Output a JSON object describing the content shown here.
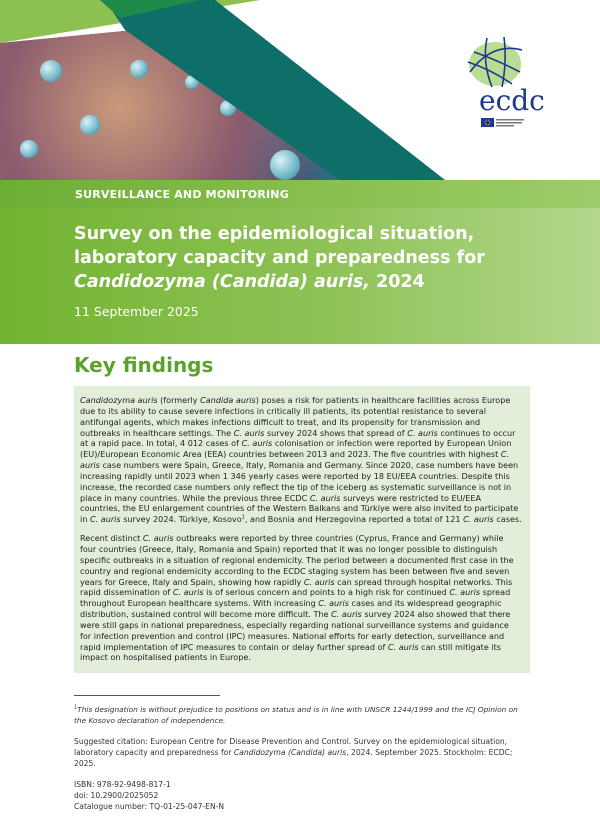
{
  "header": {
    "category": "SURVEILLANCE AND MONITORING",
    "title_plain": "Survey on the epidemiological situation, laboratory capacity and preparedness for ",
    "title_italic": "Candidozyma (Candida) auris,",
    "title_year": " 2024",
    "date": "11 September 2025",
    "logo_text": "ecdc",
    "logo_subtext": "EUROPEAN CENTRE FOR DISEASE PREVENTION AND CONTROL"
  },
  "colors": {
    "brand_green": "#5aa22c",
    "panel_green": "#8fc257",
    "teal": "#0e6e68",
    "box_bg": "#e3eeda",
    "logo_blue": "#1d3a8a"
  },
  "key_findings": {
    "heading": "Key findings",
    "paragraphs": [
      [
        {
          "t": "Candidozyma auris",
          "i": true
        },
        {
          "t": " (formerly "
        },
        {
          "t": "Candida auris",
          "i": true
        },
        {
          "t": ") poses a risk for patients in healthcare facilities across Europe due to its ability to cause severe infections in critically ill patients, its potential resistance to several antifungal agents, which makes infections difficult to treat, and its propensity for transmission and outbreaks in healthcare settings. The "
        },
        {
          "t": "C. auris",
          "i": true
        },
        {
          "t": " survey 2024 shows that spread of "
        },
        {
          "t": "C. auris",
          "i": true
        },
        {
          "t": " continues to occur at a rapid pace. In total, 4 012 cases of "
        },
        {
          "t": "C. auris",
          "i": true
        },
        {
          "t": " colonisation or infection were reported by European Union (EU)/European Economic Area (EEA) countries between 2013 and 2023. The five countries with highest "
        },
        {
          "t": "C. auris",
          "i": true
        },
        {
          "t": " case numbers were Spain, Greece, Italy, Romania and Germany. Since 2020, case numbers have been increasing rapidly until 2023 when 1 346 yearly cases were reported by 18 EU/EEA countries. Despite this increase, the recorded case numbers only reflect the tip of the iceberg as systematic surveillance is not in place in many countries. While the previous three ECDC "
        },
        {
          "t": "C. auris",
          "i": true
        },
        {
          "t": " surveys were restricted to EU/EEA countries, the EU enlargement countries of the Western Balkans and Türkiye were also invited to participate in "
        },
        {
          "t": "C. auris",
          "i": true
        },
        {
          "t": " survey 2024. Türkiye, Kosovo"
        },
        {
          "t": "1",
          "s": true
        },
        {
          "t": ", and Bosnia and Herzegovina reported a total of 121 "
        },
        {
          "t": "C. auris",
          "i": true
        },
        {
          "t": " cases."
        }
      ],
      [
        {
          "t": "Recent distinct "
        },
        {
          "t": "C. auris",
          "i": true
        },
        {
          "t": " outbreaks were reported by three countries (Cyprus, France and Germany) while four countries (Greece, Italy, Romania and Spain) reported that it was no longer possible to distinguish specific outbreaks in a situation of regional endemicity. The period between a documented first case in the country and regional endemicity according to the ECDC staging system has been between five and seven years for Greece, Italy and Spain, showing how rapidly "
        },
        {
          "t": "C. auris",
          "i": true
        },
        {
          "t": " can spread through hospital networks. This rapid dissemination of "
        },
        {
          "t": "C. auris",
          "i": true
        },
        {
          "t": " is of serious concern and points to a high risk for continued "
        },
        {
          "t": "C. auris",
          "i": true
        },
        {
          "t": " spread throughout European healthcare systems. With increasing "
        },
        {
          "t": "C. auris",
          "i": true
        },
        {
          "t": " cases and its widespread geographic distribution, sustained control will become more difficult. The "
        },
        {
          "t": "C. auris",
          "i": true
        },
        {
          "t": " survey 2024 also showed that there were still gaps in national preparedness, especially regarding national surveillance systems and guidance for infection prevention and control (IPC) measures. National efforts for early detection, surveillance and rapid implementation of IPC measures to contain or delay further spread of "
        },
        {
          "t": "C. auris",
          "i": true
        },
        {
          "t": " can still mitigate its impact on hospitalised patients in Europe."
        }
      ]
    ]
  },
  "footnote": {
    "marker": "1",
    "text": "This designation is without prejudice to positions on status and is in line with UNSCR 1244/1999 and the ICJ Opinion on the Kosovo declaration of independence."
  },
  "citation": {
    "before": "Suggested citation: European Centre for Disease Prevention and Control. Survey on the epidemiological situation, laboratory capacity and preparedness for ",
    "italic": "Candidozyma (Candida) auris",
    "after": ", 2024. September 2025. Stockholm: ECDC; 2025."
  },
  "identifiers": {
    "isbn": "ISBN: 978-92-9498-817-1",
    "doi": "doi: 10.2900/2025052",
    "catalogue": "Catalogue number: TQ-01-25-047-EN-N"
  }
}
